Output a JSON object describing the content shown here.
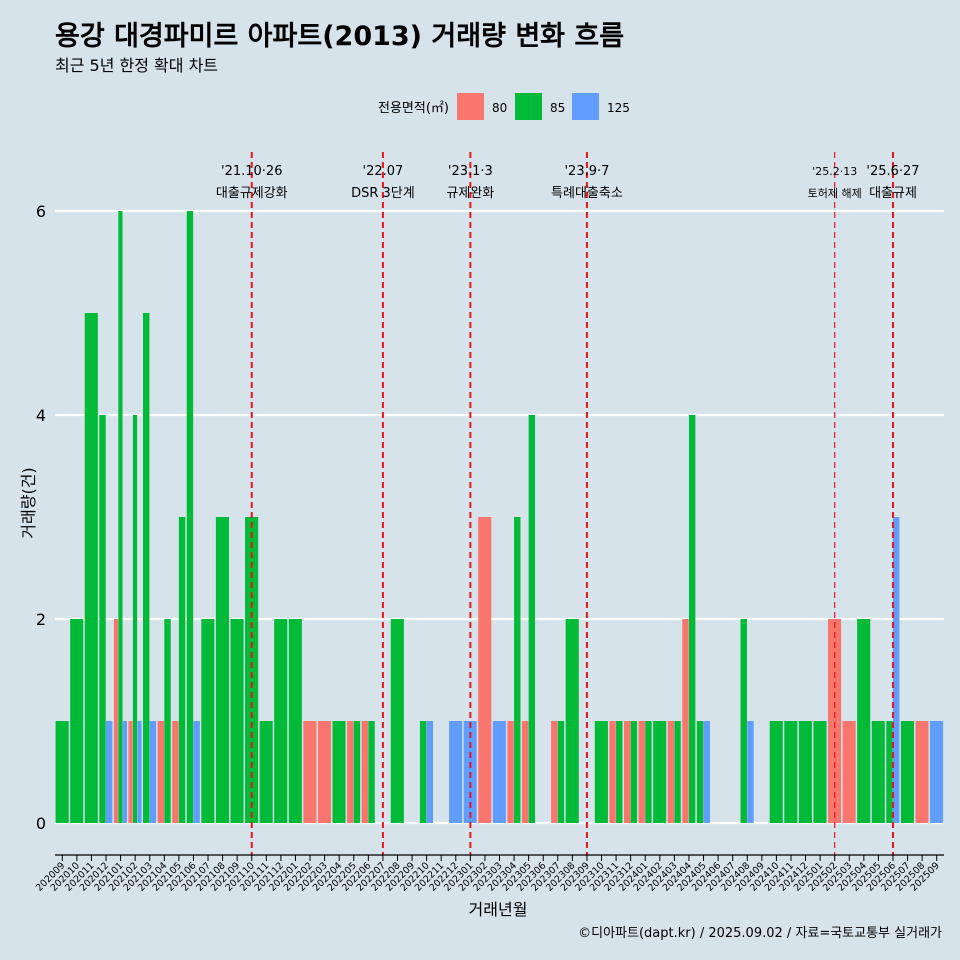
{
  "header": {
    "title": "용강 대경파미르 아파트(2013) 거래량 변화 흐름",
    "subtitle": "최근 5년 한정 확대 차트"
  },
  "footer": {
    "caption": "©디아파트(dapt.kr) / 2025.09.02 / 자료=국토교통부 실거래가"
  },
  "chart_data": {
    "type": "bar",
    "xlabel": "거래년월",
    "ylabel": "거래량(건)",
    "ylim": [
      0,
      6
    ],
    "yticks": [
      0,
      2,
      4,
      6
    ],
    "grid": true,
    "legend": {
      "title": "전용면적(㎡)",
      "placement": "top",
      "entries": [
        "80",
        "85",
        "125"
      ]
    },
    "colors": {
      "80": "#f8766d",
      "85": "#00ba38",
      "125": "#619cff",
      "event_line": "#e8141c",
      "grid": "#ffffff"
    },
    "x_ticks": [
      "202009",
      "202010",
      "202011",
      "202012",
      "202101",
      "202102",
      "202103",
      "202104",
      "202105",
      "202106",
      "202107",
      "202108",
      "202109",
      "202110",
      "202111",
      "202112",
      "202201",
      "202202",
      "202203",
      "202204",
      "202205",
      "202206",
      "202207",
      "202208",
      "202209",
      "202210",
      "202211",
      "202212",
      "202301",
      "202302",
      "202303",
      "202304",
      "202305",
      "202306",
      "202307",
      "202308",
      "202309",
      "202310",
      "202311",
      "202312",
      "202401",
      "202402",
      "202403",
      "202404",
      "202405",
      "202406",
      "202407",
      "202408",
      "202409",
      "202410",
      "202411",
      "202412",
      "202501",
      "202502",
      "202503",
      "202504",
      "202505",
      "202506",
      "202507",
      "202508",
      "202509"
    ],
    "series": [
      {
        "name": "80",
        "values": [
          0,
          0,
          0,
          0,
          2,
          1,
          0,
          1,
          1,
          0,
          0,
          0,
          0,
          0,
          0,
          0,
          0,
          1,
          1,
          0,
          1,
          1,
          0,
          0,
          0,
          0,
          0,
          0,
          0,
          3,
          0,
          1,
          1,
          0,
          1,
          0,
          0,
          0,
          1,
          1,
          1,
          0,
          1,
          2,
          0,
          0,
          0,
          0,
          0,
          0,
          0,
          0,
          0,
          2,
          1,
          0,
          0,
          0,
          0,
          1,
          0
        ]
      },
      {
        "name": "85",
        "values": [
          1,
          2,
          5,
          4,
          6,
          4,
          5,
          2,
          3,
          6,
          2,
          3,
          2,
          3,
          1,
          2,
          2,
          0,
          0,
          1,
          1,
          1,
          0,
          2,
          0,
          1,
          0,
          0,
          0,
          0,
          0,
          3,
          4,
          0,
          1,
          2,
          0,
          1,
          1,
          1,
          1,
          1,
          1,
          4,
          1,
          0,
          0,
          2,
          0,
          1,
          1,
          1,
          1,
          0,
          0,
          2,
          1,
          1,
          1,
          0,
          0
        ]
      },
      {
        "name": "125",
        "values": [
          0,
          0,
          0,
          1,
          1,
          1,
          1,
          0,
          0,
          1,
          0,
          0,
          0,
          0,
          0,
          0,
          0,
          0,
          0,
          0,
          0,
          0,
          0,
          0,
          0,
          1,
          0,
          1,
          1,
          0,
          1,
          0,
          0,
          0,
          0,
          0,
          0,
          0,
          0,
          0,
          0,
          0,
          0,
          0,
          1,
          0,
          0,
          1,
          0,
          0,
          0,
          0,
          0,
          0,
          0,
          0,
          0,
          3,
          0,
          0,
          1
        ]
      }
    ],
    "events": [
      {
        "date": "202110",
        "label_top": "'21.10·26",
        "label_bottom": "대출규제강화"
      },
      {
        "date": "202207",
        "label_top": "'22.07",
        "label_bottom": "DSR 3단계"
      },
      {
        "date": "202301",
        "label_top": "'23.1·3",
        "label_bottom": "규제완화"
      },
      {
        "date": "202309",
        "label_top": "'23.9·7",
        "label_bottom": "특례대출축소"
      },
      {
        "date": "202502",
        "label_top": "'25.2·13",
        "label_bottom": "토허제 해제"
      },
      {
        "date": "202506",
        "label_top": "'25.6·27",
        "label_bottom": "대출규제"
      }
    ]
  }
}
